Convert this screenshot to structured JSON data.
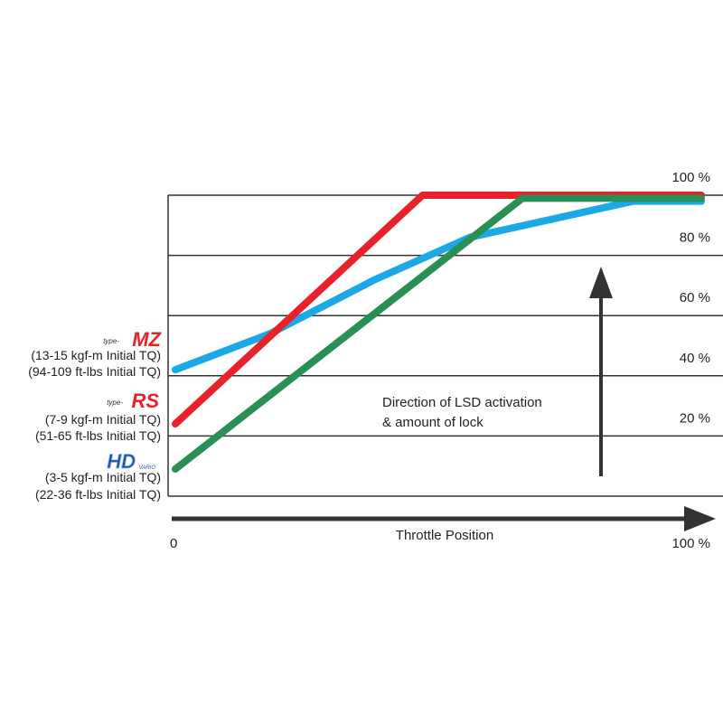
{
  "chart_data": {
    "type": "line",
    "title": "",
    "xlabel": "Throttle Position",
    "ylabel": "",
    "xlim": [
      0,
      100
    ],
    "ylim": [
      0,
      100
    ],
    "x_tick_labels": [
      "0",
      "100 %"
    ],
    "y_tick_labels": [
      "20 %",
      "40 %",
      "60 %",
      "80 %",
      "100 %"
    ],
    "grid": true,
    "annotation": [
      "Direction of LSD activation",
      "& amount of lock"
    ],
    "series": [
      {
        "name": "type-MZ",
        "color": "#1aa9e6",
        "x": [
          0,
          18,
          38,
          56,
          87,
          100
        ],
        "y": [
          42,
          54,
          72,
          86,
          98,
          98
        ]
      },
      {
        "name": "type-RS",
        "color": "#e8212a",
        "x": [
          0,
          47,
          100
        ],
        "y": [
          24,
          100,
          100
        ]
      },
      {
        "name": "HD",
        "color": "#2a8f55",
        "x": [
          0,
          66,
          100
        ],
        "y": [
          9,
          99,
          99
        ]
      }
    ],
    "legend": [
      {
        "logo": "type-MZ",
        "lines": [
          "(13-15 kgf-m Initial TQ)",
          "(94-109 ft-lbs Initial TQ)"
        ]
      },
      {
        "logo": "type-RS",
        "lines": [
          "(7-9 kgf-m Initial TQ)",
          "(51-65 ft-lbs Initial TQ)"
        ]
      },
      {
        "logo": "HD",
        "lines": [
          "(3-5 kgf-m Initial TQ)",
          "(22-36 ft-lbs Initial TQ)"
        ]
      }
    ]
  }
}
